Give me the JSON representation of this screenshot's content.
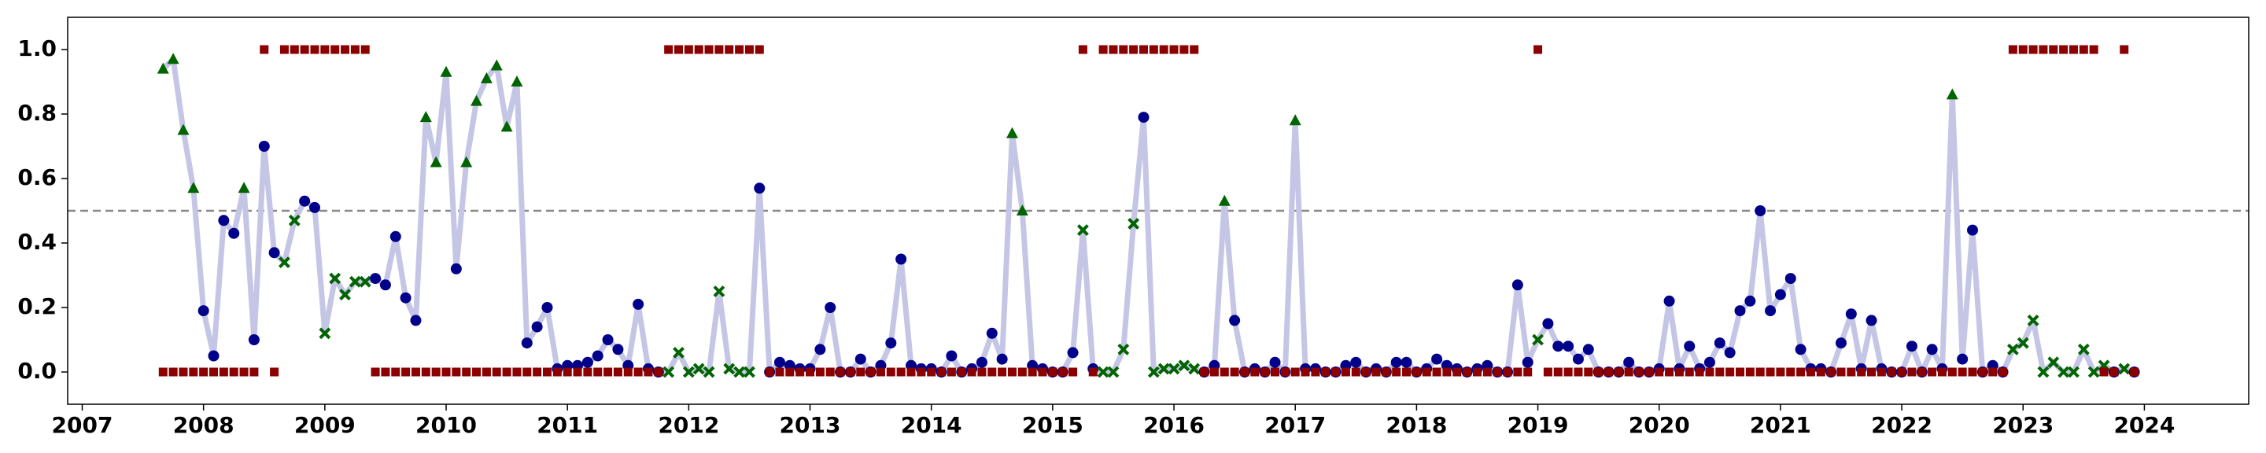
{
  "chart_data": {
    "type": "line",
    "x": [
      "2007-09",
      "2007-10",
      "2007-11",
      "2007-12",
      "2008-01",
      "2008-02",
      "2008-03",
      "2008-04",
      "2008-05",
      "2008-06",
      "2008-07",
      "2008-08",
      "2008-09",
      "2008-10",
      "2008-11",
      "2008-12",
      "2009-01",
      "2009-02",
      "2009-03",
      "2009-04",
      "2009-05",
      "2009-06",
      "2009-07",
      "2009-08",
      "2009-09",
      "2009-10",
      "2009-11",
      "2009-12",
      "2010-01",
      "2010-02",
      "2010-03",
      "2010-04",
      "2010-05",
      "2010-06",
      "2010-07",
      "2010-08",
      "2010-09",
      "2010-10",
      "2010-11",
      "2010-12",
      "2011-01",
      "2011-02",
      "2011-03",
      "2011-04",
      "2011-05",
      "2011-06",
      "2011-07",
      "2011-08",
      "2011-09",
      "2011-10",
      "2011-11",
      "2011-12",
      "2012-01",
      "2012-02",
      "2012-03",
      "2012-04",
      "2012-05",
      "2012-06",
      "2012-07",
      "2012-08",
      "2012-09",
      "2012-10",
      "2012-11",
      "2012-12",
      "2013-01",
      "2013-02",
      "2013-03",
      "2013-04",
      "2013-05",
      "2013-06",
      "2013-07",
      "2013-08",
      "2013-09",
      "2013-10",
      "2013-11",
      "2013-12",
      "2014-01",
      "2014-02",
      "2014-03",
      "2014-04",
      "2014-05",
      "2014-06",
      "2014-07",
      "2014-08",
      "2014-09",
      "2014-10",
      "2014-11",
      "2014-12",
      "2015-01",
      "2015-02",
      "2015-03",
      "2015-04",
      "2015-05",
      "2015-06",
      "2015-07",
      "2015-08",
      "2015-09",
      "2015-10",
      "2015-11",
      "2015-12",
      "2016-01",
      "2016-02",
      "2016-03",
      "2016-04",
      "2016-05",
      "2016-06",
      "2016-07",
      "2016-08",
      "2016-09",
      "2016-10",
      "2016-11",
      "2016-12",
      "2017-01",
      "2017-02",
      "2017-03",
      "2017-04",
      "2017-05",
      "2017-06",
      "2017-07",
      "2017-08",
      "2017-09",
      "2017-10",
      "2017-11",
      "2017-12",
      "2018-01",
      "2018-02",
      "2018-03",
      "2018-04",
      "2018-05",
      "2018-06",
      "2018-07",
      "2018-08",
      "2018-09",
      "2018-10",
      "2018-11",
      "2018-12",
      "2019-01",
      "2019-02",
      "2019-03",
      "2019-04",
      "2019-05",
      "2019-06",
      "2019-07",
      "2019-08",
      "2019-09",
      "2019-10",
      "2019-11",
      "2019-12",
      "2020-01",
      "2020-02",
      "2020-03",
      "2020-04",
      "2020-05",
      "2020-06",
      "2020-07",
      "2020-08",
      "2020-09",
      "2020-10",
      "2020-11",
      "2020-12",
      "2021-01",
      "2021-02",
      "2021-03",
      "2021-04",
      "2021-05",
      "2021-06",
      "2021-07",
      "2021-08",
      "2021-09",
      "2021-10",
      "2021-11",
      "2021-12",
      "2022-01",
      "2022-02",
      "2022-03",
      "2022-04",
      "2022-05",
      "2022-06",
      "2022-07",
      "2022-08",
      "2022-09",
      "2022-10",
      "2022-11",
      "2022-12",
      "2023-01",
      "2023-02",
      "2023-03",
      "2023-04",
      "2023-05",
      "2023-06",
      "2023-07",
      "2023-08",
      "2023-09",
      "2023-10",
      "2023-11",
      "2023-12"
    ],
    "series": [
      {
        "color": "#c5c6e6",
        "marker_colors": {
          "o": "#00008b",
          "^": "#006400",
          "x": "#006400"
        },
        "values": [
          0.94,
          0.97,
          0.75,
          0.57,
          0.19,
          0.05,
          0.47,
          0.43,
          0.57,
          0.1,
          0.7,
          0.37,
          0.34,
          0.47,
          0.53,
          0.51,
          0.12,
          0.29,
          0.24,
          0.28,
          0.28,
          0.29,
          0.27,
          0.42,
          0.23,
          0.16,
          0.79,
          0.65,
          0.93,
          0.32,
          0.65,
          0.84,
          0.91,
          0.95,
          0.76,
          0.9,
          0.09,
          0.14,
          0.2,
          0.01,
          0.02,
          0.02,
          0.03,
          0.05,
          0.1,
          0.07,
          0.02,
          0.21,
          0.01,
          0.0,
          0.0,
          0.06,
          0.0,
          0.01,
          0.0,
          0.25,
          0.01,
          0.0,
          0.0,
          0.57,
          0.0,
          0.03,
          0.02,
          0.01,
          0.01,
          0.07,
          0.2,
          0.0,
          0.0,
          0.04,
          0.0,
          0.02,
          0.09,
          0.35,
          0.02,
          0.01,
          0.01,
          0.0,
          0.05,
          0.0,
          0.01,
          0.03,
          0.12,
          0.04,
          0.74,
          0.5,
          0.02,
          0.01,
          0.0,
          0.0,
          0.06,
          0.44,
          0.01,
          0.0,
          0.0,
          0.07,
          0.46,
          0.79,
          0.0,
          0.01,
          0.01,
          0.02,
          0.01,
          0.0,
          0.02,
          0.53,
          0.16,
          0.0,
          0.01,
          0.0,
          0.03,
          0.0,
          0.78,
          0.01,
          0.01,
          0.0,
          0.0,
          0.02,
          0.03,
          0.0,
          0.01,
          0.0,
          0.03,
          0.03,
          0.0,
          0.01,
          0.04,
          0.02,
          0.01,
          0.0,
          0.01,
          0.02,
          0.0,
          0.0,
          0.27,
          0.03,
          0.1,
          0.15,
          0.08,
          0.08,
          0.04,
          0.07,
          0.0,
          0.0,
          0.0,
          0.03,
          0.0,
          0.0,
          0.01,
          0.22,
          0.01,
          0.08,
          0.01,
          0.03,
          0.09,
          0.06,
          0.19,
          0.22,
          0.5,
          0.19,
          0.24,
          0.29,
          0.07,
          0.01,
          0.01,
          0.0,
          0.09,
          0.18,
          0.01,
          0.16,
          0.01,
          0.0,
          0.0,
          0.08,
          0.0,
          0.07,
          0.01,
          0.86,
          0.04,
          0.44,
          0.0,
          0.02,
          0.0,
          0.07,
          0.09,
          0.16,
          0.0,
          0.03,
          0.0,
          0.0,
          0.07,
          0.0,
          0.02,
          0.0,
          0.01,
          0.0
        ],
        "markers": [
          "^",
          "^",
          "^",
          "^",
          "o",
          "o",
          "o",
          "o",
          "^",
          "o",
          "o",
          "o",
          "x",
          "x",
          "o",
          "o",
          "x",
          "x",
          "x",
          "x",
          "x",
          "o",
          "o",
          "o",
          "o",
          "o",
          "^",
          "^",
          "^",
          "o",
          "^",
          "^",
          "^",
          "^",
          "^",
          "^",
          "o",
          "o",
          "o",
          "o",
          "o",
          "o",
          "o",
          "o",
          "o",
          "o",
          "o",
          "o",
          "o",
          "o",
          "x",
          "x",
          "x",
          "x",
          "x",
          "x",
          "x",
          "x",
          "x",
          "o",
          "o",
          "o",
          "o",
          "o",
          "o",
          "o",
          "o",
          "o",
          "o",
          "o",
          "o",
          "o",
          "o",
          "o",
          "o",
          "o",
          "o",
          "o",
          "o",
          "o",
          "o",
          "o",
          "o",
          "o",
          "^",
          "^",
          "o",
          "o",
          "o",
          "o",
          "o",
          "x",
          "o",
          "x",
          "x",
          "x",
          "x",
          "o",
          "x",
          "x",
          "x",
          "x",
          "x",
          "o",
          "o",
          "^",
          "o",
          "o",
          "o",
          "o",
          "o",
          "o",
          "^",
          "o",
          "o",
          "o",
          "o",
          "o",
          "o",
          "o",
          "o",
          "o",
          "o",
          "o",
          "o",
          "o",
          "o",
          "o",
          "o",
          "o",
          "o",
          "o",
          "o",
          "o",
          "o",
          "o",
          "x",
          "o",
          "o",
          "o",
          "o",
          "o",
          "o",
          "o",
          "o",
          "o",
          "o",
          "o",
          "o",
          "o",
          "o",
          "o",
          "o",
          "o",
          "o",
          "o",
          "o",
          "o",
          "o",
          "o",
          "o",
          "o",
          "o",
          "o",
          "o",
          "o",
          "o",
          "o",
          "o",
          "o",
          "o",
          "o",
          "o",
          "o",
          "o",
          "o",
          "o",
          "^",
          "o",
          "o",
          "o",
          "o",
          "o",
          "x",
          "x",
          "x",
          "x",
          "x",
          "x",
          "x",
          "x",
          "x",
          "x",
          "o",
          "x",
          "o"
        ]
      },
      {
        "color": "#8b0000",
        "style": "squares",
        "values": [
          0,
          0,
          0,
          0,
          0,
          0,
          0,
          0,
          0,
          0,
          1,
          0,
          1,
          1,
          1,
          1,
          1,
          1,
          1,
          1,
          1,
          0,
          0,
          0,
          0,
          0,
          0,
          0,
          0,
          0,
          0,
          0,
          0,
          0,
          0,
          0,
          0,
          0,
          0,
          0,
          0,
          0,
          0,
          0,
          0,
          0,
          0,
          0,
          0,
          0,
          1,
          1,
          1,
          1,
          1,
          1,
          1,
          1,
          1,
          1,
          0,
          0,
          0,
          0,
          0,
          0,
          0,
          0,
          0,
          0,
          0,
          0,
          0,
          0,
          0,
          0,
          0,
          0,
          0,
          0,
          0,
          0,
          0,
          0,
          0,
          0,
          0,
          0,
          0,
          0,
          0,
          1,
          0,
          1,
          1,
          1,
          1,
          1,
          1,
          1,
          1,
          1,
          1,
          0,
          0,
          0,
          0,
          0,
          0,
          0,
          0,
          0,
          0,
          0,
          0,
          0,
          0,
          0,
          0,
          0,
          0,
          0,
          0,
          0,
          0,
          0,
          0,
          0,
          0,
          0,
          0,
          0,
          0,
          0,
          0,
          0,
          1,
          0,
          0,
          0,
          0,
          0,
          0,
          0,
          0,
          0,
          0,
          0,
          0,
          0,
          0,
          0,
          0,
          0,
          0,
          0,
          0,
          0,
          0,
          0,
          0,
          0,
          0,
          0,
          0,
          0,
          0,
          0,
          0,
          0,
          0,
          0,
          0,
          0,
          0,
          0,
          0,
          0,
          0,
          0,
          0,
          0,
          0,
          1,
          1,
          1,
          1,
          1,
          1,
          1,
          1,
          1,
          0,
          0,
          1,
          0
        ]
      }
    ],
    "hline": {
      "value": 0.5,
      "color": "#888888"
    },
    "xlim": [
      2006.88,
      2024.86
    ],
    "xticks": [
      2007,
      2008,
      2009,
      2010,
      2011,
      2012,
      2013,
      2014,
      2015,
      2016,
      2017,
      2018,
      2019,
      2020,
      2021,
      2022,
      2023,
      2024
    ],
    "ylim": [
      -0.1,
      1.1
    ],
    "yticks": [
      {
        "value": 0,
        "label": "0.0"
      },
      {
        "value": 0.2,
        "label": "0.2"
      },
      {
        "value": 0.4,
        "label": "0.4"
      },
      {
        "value": 0.6,
        "label": "0.6"
      },
      {
        "value": 0.8,
        "label": "0.8"
      },
      {
        "value": 1,
        "label": "1.0"
      }
    ]
  }
}
